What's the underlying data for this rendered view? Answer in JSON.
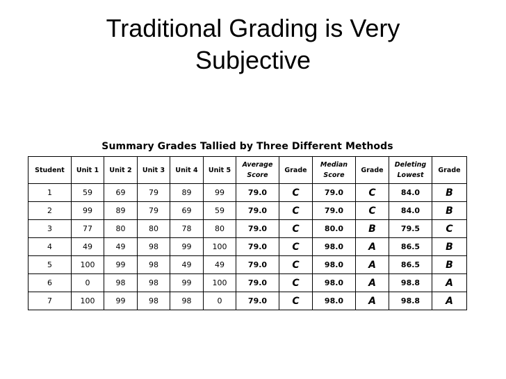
{
  "slide": {
    "title_line1": "Traditional Grading is Very",
    "title_line2": "Subjective"
  },
  "table": {
    "caption": "Summary Grades Tallied by Three Different Methods",
    "headers": [
      [
        "Student"
      ],
      [
        "Unit 1"
      ],
      [
        "Unit 2"
      ],
      [
        "Unit 3"
      ],
      [
        "Unit 4"
      ],
      [
        "Unit 5"
      ],
      [
        "Average",
        "Score"
      ],
      [
        "Grade"
      ],
      [
        "Median",
        "Score"
      ],
      [
        "Grade"
      ],
      [
        "Deleting",
        "Lowest"
      ],
      [
        "Grade"
      ]
    ],
    "rows": [
      [
        "1",
        "59",
        "69",
        "79",
        "89",
        "99",
        "79.0",
        "C",
        "79.0",
        "C",
        "84.0",
        "B"
      ],
      [
        "2",
        "99",
        "89",
        "79",
        "69",
        "59",
        "79.0",
        "C",
        "79.0",
        "C",
        "84.0",
        "B"
      ],
      [
        "3",
        "77",
        "80",
        "80",
        "78",
        "80",
        "79.0",
        "C",
        "80.0",
        "B",
        "79.5",
        "C"
      ],
      [
        "4",
        "49",
        "49",
        "98",
        "99",
        "100",
        "79.0",
        "C",
        "98.0",
        "A",
        "86.5",
        "B"
      ],
      [
        "5",
        "100",
        "99",
        "98",
        "49",
        "49",
        "79.0",
        "C",
        "98.0",
        "A",
        "86.5",
        "B"
      ],
      [
        "6",
        "0",
        "98",
        "98",
        "99",
        "100",
        "79.0",
        "C",
        "98.0",
        "A",
        "98.8",
        "A"
      ],
      [
        "7",
        "100",
        "99",
        "98",
        "98",
        "0",
        "79.0",
        "C",
        "98.0",
        "A",
        "98.8",
        "A"
      ]
    ]
  }
}
